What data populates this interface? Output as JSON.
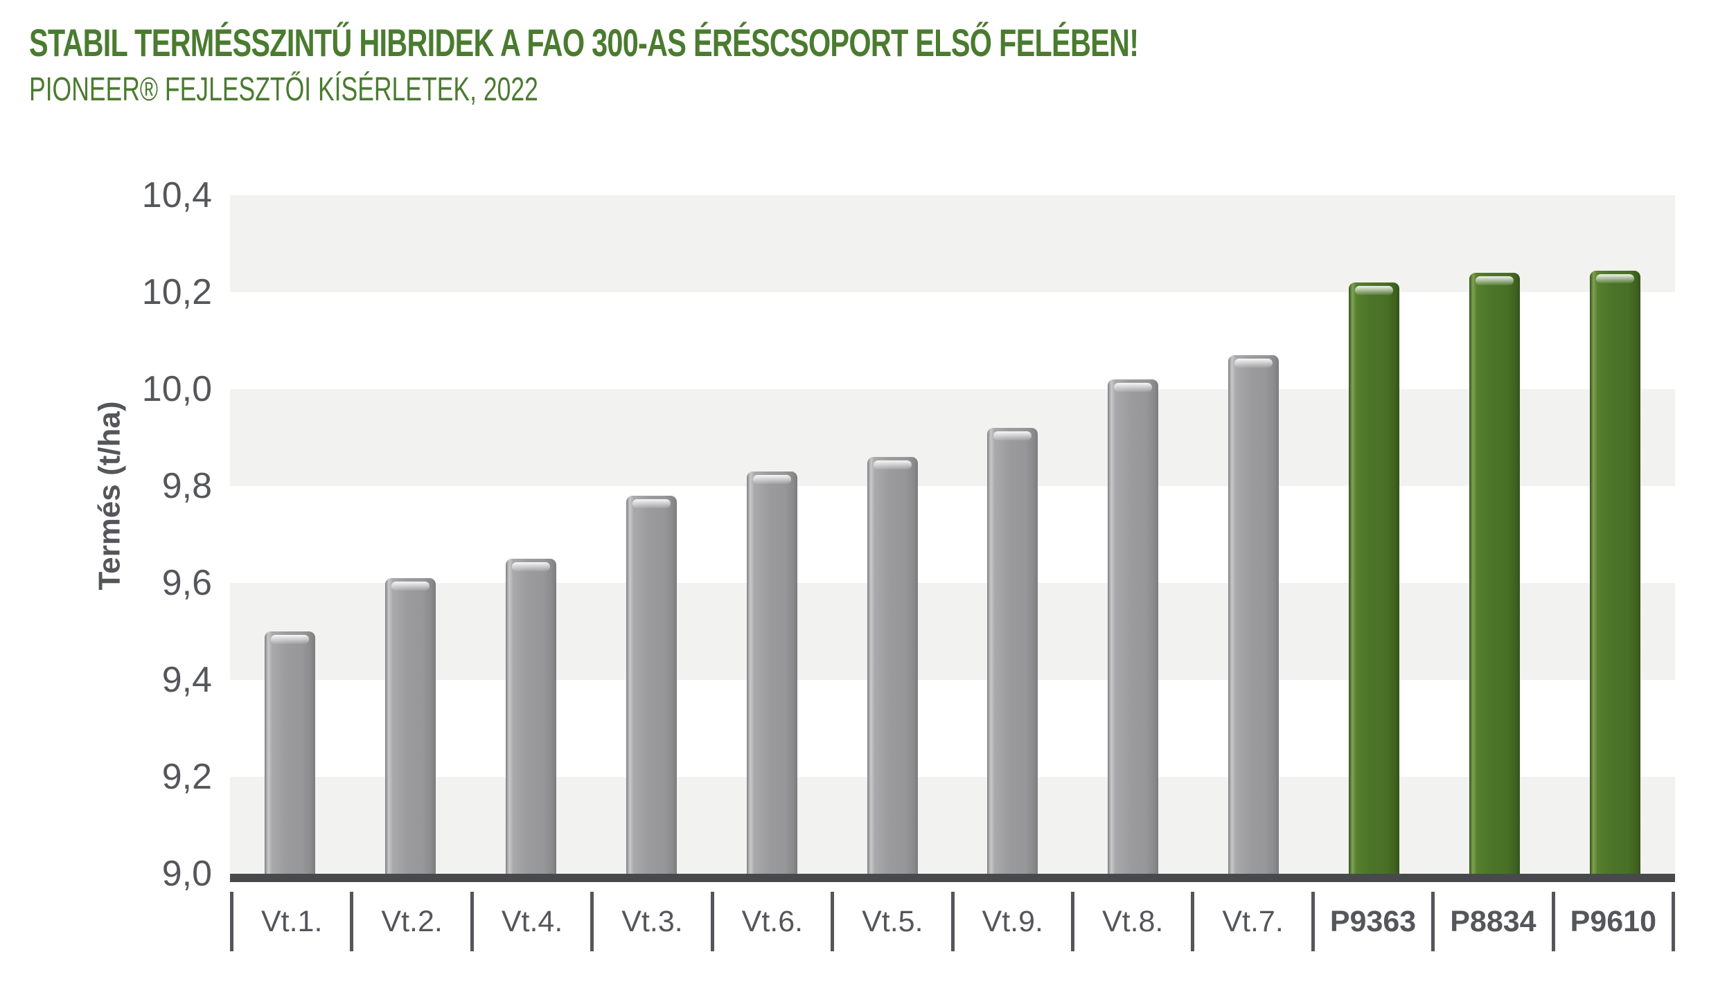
{
  "header": {
    "title": "STABIL TERMÉSSZINTŰ HIBRIDEK A FAO 300-AS ÉRÉSCSOPORT ELSŐ FELÉBEN!",
    "subtitle": "PIONEER® FEJLESZTŐI KÍSÉRLETEK, 2022"
  },
  "colors": {
    "title_green": "#4A7B2F",
    "bar_gray": "#9B9B9D",
    "bar_green": "#4C7429",
    "band_gray": "#F2F2F0",
    "axis_line": "#48494C",
    "text_gray": "#55565A"
  },
  "chart_data": {
    "type": "bar",
    "title": "STABIL TERMÉSSZINTŰ HIBRIDEK A FAO 300-AS ÉRÉSCSOPORT ELSŐ FELÉBEN!",
    "subtitle": "PIONEER® FEJLESZTŐI KÍSÉRLETEK, 2022",
    "xlabel": "",
    "ylabel": "Termés (t/ha)",
    "ylim": [
      9.0,
      10.4
    ],
    "ytick_interval": 0.2,
    "ytick_labels": [
      "10,4",
      "10,2",
      "10,0",
      "9,8",
      "9,6",
      "9,4",
      "9,2",
      "9,0"
    ],
    "decimal_separator": ",",
    "grid": "alternating horizontal bands of 0.2 t/ha, gray and white, gray topmost",
    "legend_position": "none",
    "categories": [
      "Vt.1.",
      "Vt.2.",
      "Vt.4.",
      "Vt.3.",
      "Vt.6.",
      "Vt.5.",
      "Vt.9.",
      "Vt.8.",
      "Vt.7.",
      "P9363",
      "P8834",
      "P9610"
    ],
    "values": [
      9.5,
      9.61,
      9.65,
      9.78,
      9.83,
      9.86,
      9.92,
      10.02,
      10.07,
      10.22,
      10.24,
      10.245
    ],
    "bars": [
      {
        "label": "Vt.1.",
        "value": 9.5,
        "color": "gray",
        "highlight": false
      },
      {
        "label": "Vt.2.",
        "value": 9.61,
        "color": "gray",
        "highlight": false
      },
      {
        "label": "Vt.4.",
        "value": 9.65,
        "color": "gray",
        "highlight": false
      },
      {
        "label": "Vt.3.",
        "value": 9.78,
        "color": "gray",
        "highlight": false
      },
      {
        "label": "Vt.6.",
        "value": 9.83,
        "color": "gray",
        "highlight": false
      },
      {
        "label": "Vt.5.",
        "value": 9.86,
        "color": "gray",
        "highlight": false
      },
      {
        "label": "Vt.9.",
        "value": 9.92,
        "color": "gray",
        "highlight": false
      },
      {
        "label": "Vt.8.",
        "value": 10.02,
        "color": "gray",
        "highlight": false
      },
      {
        "label": "Vt.7.",
        "value": 10.07,
        "color": "gray",
        "highlight": false
      },
      {
        "label": "P9363",
        "value": 10.22,
        "color": "green",
        "highlight": true
      },
      {
        "label": "P8834",
        "value": 10.24,
        "color": "green",
        "highlight": true
      },
      {
        "label": "P9610",
        "value": 10.245,
        "color": "green",
        "highlight": true
      }
    ]
  }
}
